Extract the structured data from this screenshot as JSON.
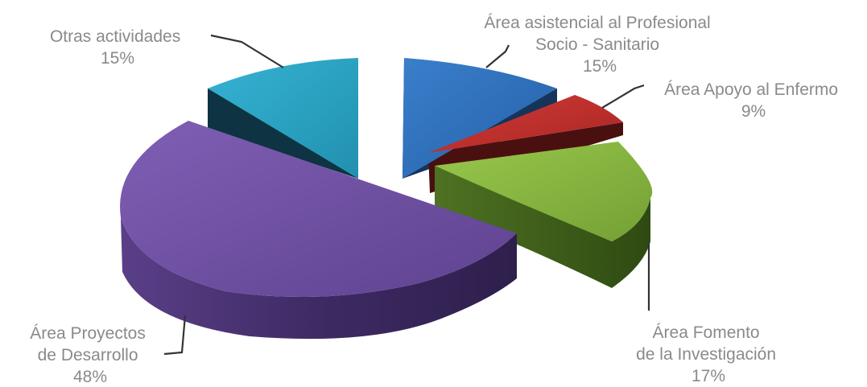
{
  "chart_data": {
    "type": "pie",
    "style": "3d-exploded",
    "slices": [
      {
        "name": "Área asistencial al Profesional Socio - Sanitario",
        "label_lines": [
          "Área asistencial al Profesional",
          "Socio - Sanitario"
        ],
        "percent_label": "15%",
        "value": 15,
        "color": "#2F6FB8"
      },
      {
        "name": "Área Apoyo al Enfermo",
        "label_lines": [
          "Área Apoyo al Enfermo"
        ],
        "percent_label": "9%",
        "value": 9,
        "color": "#C0302E"
      },
      {
        "name": "Área Fomento de la Investigación",
        "label_lines": [
          "Área Fomento",
          "de la Investigación"
        ],
        "percent_label": "17%",
        "value": 17,
        "color": "#86B43E"
      },
      {
        "name": "Área Proyectos de Desarrollo",
        "label_lines": [
          "Área Proyectos",
          "de Desarrollo"
        ],
        "percent_label": "48%",
        "value": 48,
        "color": "#6F4EA0"
      },
      {
        "name": "Otras actividades",
        "label_lines": [
          "Otras actividades"
        ],
        "percent_label": "15%",
        "value": 15,
        "color": "#2AA3C4"
      }
    ]
  }
}
